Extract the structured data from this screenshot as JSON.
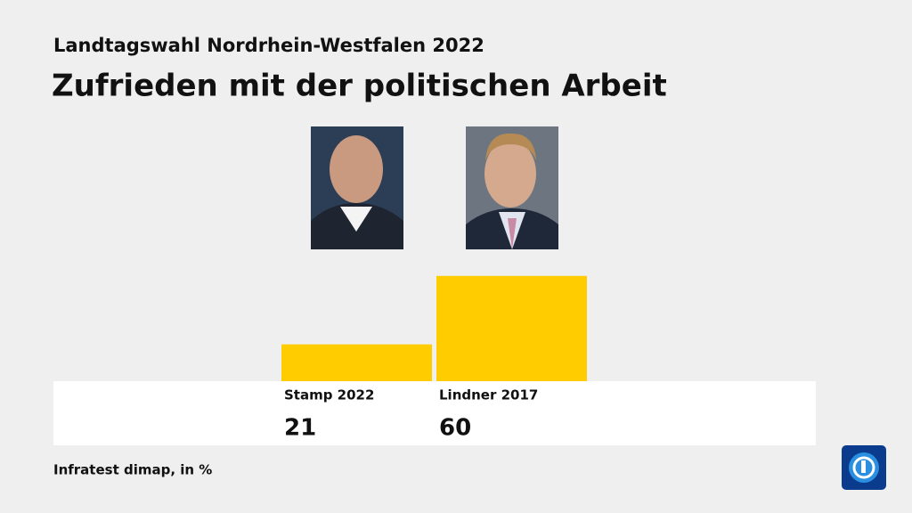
{
  "chart_data": {
    "type": "bar",
    "subtitle": "Landtagswahl Nordrhein-Westfalen 2022",
    "title": "Zufrieden mit der politischen Arbeit",
    "categories": [
      "Stamp 2022",
      "Lindner 2017"
    ],
    "values": [
      21,
      60
    ],
    "color": "#ffcc00",
    "source": "Infratest dimap, in %"
  }
}
